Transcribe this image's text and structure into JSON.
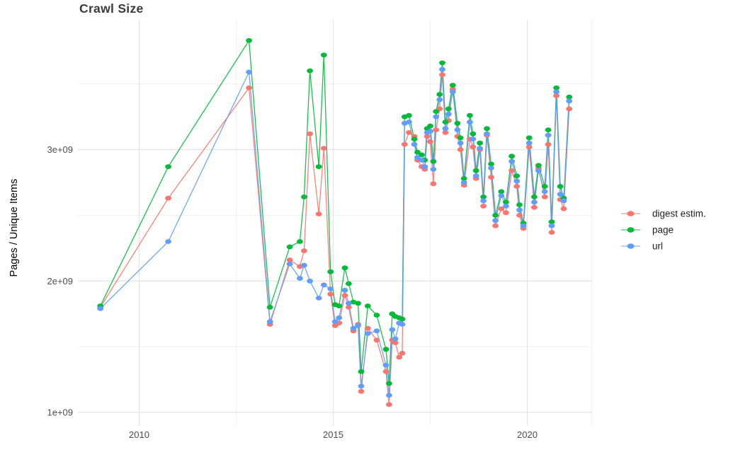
{
  "header": {
    "title": "Crawl Size"
  },
  "chart_data": {
    "type": "line",
    "title": "Crawl Size",
    "xlabel": "",
    "ylabel": "Pages / Unique Items",
    "value_unit": "billions (1e9)",
    "xlim": [
      2008.4,
      2021.7
    ],
    "ylim_billions": [
      0.92,
      3.98
    ],
    "legend_position": "right-middle",
    "x_ticks": [
      {
        "label": "2010",
        "year": 2010
      },
      {
        "label": "2015",
        "year": 2015
      },
      {
        "label": "2020",
        "year": 2020
      }
    ],
    "y_ticks": [
      {
        "label": "1e+09",
        "value": 1
      },
      {
        "label": "2e+09",
        "value": 2
      },
      {
        "label": "3e+09",
        "value": 3
      }
    ],
    "x_minor_gridlines_years": [
      2012.5,
      2017.5,
      2021.66
    ],
    "y_minor_gridlines_billions": [
      1.5,
      2.5,
      3.5
    ],
    "series": [
      {
        "name": "digest estim.",
        "color": "#F8766D",
        "points": [
          [
            2009.0,
            1.8
          ],
          [
            2010.75,
            2.63
          ],
          [
            2012.83,
            3.47
          ],
          [
            2013.37,
            1.67
          ],
          [
            2013.88,
            2.16
          ],
          [
            2014.14,
            2.11
          ],
          [
            2014.25,
            2.23
          ],
          [
            2014.4,
            3.12
          ],
          [
            2014.63,
            2.51
          ],
          [
            2014.76,
            3.01
          ],
          [
            2014.93,
            1.9
          ],
          [
            2015.05,
            1.66
          ],
          [
            2015.15,
            1.68
          ],
          [
            2015.3,
            1.89
          ],
          [
            2015.4,
            1.8
          ],
          [
            2015.52,
            1.62
          ],
          [
            2015.64,
            1.67
          ],
          [
            2015.72,
            1.16
          ],
          [
            2015.89,
            1.64
          ],
          [
            2016.12,
            1.55
          ],
          [
            2016.36,
            1.31
          ],
          [
            2016.44,
            1.06
          ],
          [
            2016.52,
            1.55
          ],
          [
            2016.6,
            1.53
          ],
          [
            2016.7,
            1.42
          ],
          [
            2016.78,
            1.45
          ],
          [
            2016.84,
            3.04
          ],
          [
            2016.95,
            3.13
          ],
          [
            2017.09,
            3.1
          ],
          [
            2017.17,
            2.92
          ],
          [
            2017.28,
            2.87
          ],
          [
            2017.36,
            2.85
          ],
          [
            2017.42,
            3.1
          ],
          [
            2017.5,
            3.06
          ],
          [
            2017.58,
            2.74
          ],
          [
            2017.65,
            3.15
          ],
          [
            2017.74,
            3.31
          ],
          [
            2017.81,
            3.57
          ],
          [
            2017.89,
            3.13
          ],
          [
            2017.97,
            3.22
          ],
          [
            2018.08,
            3.46
          ],
          [
            2018.2,
            3.1
          ],
          [
            2018.28,
            3.0
          ],
          [
            2018.37,
            2.73
          ],
          [
            2018.52,
            3.08
          ],
          [
            2018.6,
            3.02
          ],
          [
            2018.68,
            2.78
          ],
          [
            2018.78,
            3.0
          ],
          [
            2018.87,
            2.57
          ],
          [
            2018.96,
            3.11
          ],
          [
            2019.07,
            2.79
          ],
          [
            2019.18,
            2.42
          ],
          [
            2019.33,
            2.55
          ],
          [
            2019.45,
            2.52
          ],
          [
            2019.6,
            2.84
          ],
          [
            2019.73,
            2.72
          ],
          [
            2019.8,
            2.5
          ],
          [
            2019.9,
            2.4
          ],
          [
            2020.05,
            3.02
          ],
          [
            2020.18,
            2.56
          ],
          [
            2020.29,
            2.86
          ],
          [
            2020.45,
            2.64
          ],
          [
            2020.54,
            3.04
          ],
          [
            2020.63,
            2.37
          ],
          [
            2020.75,
            3.41
          ],
          [
            2020.85,
            2.62
          ],
          [
            2020.94,
            2.55
          ],
          [
            2021.08,
            3.31
          ]
        ]
      },
      {
        "name": "page",
        "color": "#00BA38",
        "points": [
          [
            2009.0,
            1.81
          ],
          [
            2010.75,
            2.87
          ],
          [
            2012.83,
            3.83
          ],
          [
            2013.37,
            1.8
          ],
          [
            2013.88,
            2.26
          ],
          [
            2014.14,
            2.3
          ],
          [
            2014.25,
            2.64
          ],
          [
            2014.4,
            3.6
          ],
          [
            2014.63,
            2.87
          ],
          [
            2014.76,
            3.72
          ],
          [
            2014.93,
            2.07
          ],
          [
            2015.05,
            1.82
          ],
          [
            2015.15,
            1.81
          ],
          [
            2015.3,
            2.1
          ],
          [
            2015.4,
            1.98
          ],
          [
            2015.52,
            1.84
          ],
          [
            2015.64,
            1.83
          ],
          [
            2015.72,
            1.31
          ],
          [
            2015.89,
            1.81
          ],
          [
            2016.12,
            1.74
          ],
          [
            2016.36,
            1.48
          ],
          [
            2016.44,
            1.22
          ],
          [
            2016.52,
            1.75
          ],
          [
            2016.6,
            1.73
          ],
          [
            2016.7,
            1.72
          ],
          [
            2016.78,
            1.71
          ],
          [
            2016.84,
            3.25
          ],
          [
            2016.95,
            3.26
          ],
          [
            2017.09,
            3.08
          ],
          [
            2017.17,
            2.98
          ],
          [
            2017.28,
            2.96
          ],
          [
            2017.36,
            2.92
          ],
          [
            2017.42,
            3.16
          ],
          [
            2017.5,
            3.18
          ],
          [
            2017.58,
            2.91
          ],
          [
            2017.65,
            3.29
          ],
          [
            2017.74,
            3.42
          ],
          [
            2017.81,
            3.66
          ],
          [
            2017.89,
            3.21
          ],
          [
            2017.97,
            3.31
          ],
          [
            2018.08,
            3.49
          ],
          [
            2018.2,
            3.2
          ],
          [
            2018.28,
            3.09
          ],
          [
            2018.37,
            2.78
          ],
          [
            2018.52,
            3.26
          ],
          [
            2018.6,
            3.12
          ],
          [
            2018.68,
            2.84
          ],
          [
            2018.78,
            3.05
          ],
          [
            2018.87,
            2.64
          ],
          [
            2018.96,
            3.16
          ],
          [
            2019.07,
            2.89
          ],
          [
            2019.18,
            2.5
          ],
          [
            2019.33,
            2.68
          ],
          [
            2019.45,
            2.6
          ],
          [
            2019.6,
            2.95
          ],
          [
            2019.73,
            2.8
          ],
          [
            2019.8,
            2.58
          ],
          [
            2019.9,
            2.44
          ],
          [
            2020.05,
            3.09
          ],
          [
            2020.18,
            2.64
          ],
          [
            2020.29,
            2.88
          ],
          [
            2020.45,
            2.72
          ],
          [
            2020.54,
            3.15
          ],
          [
            2020.63,
            2.45
          ],
          [
            2020.75,
            3.47
          ],
          [
            2020.85,
            2.72
          ],
          [
            2020.94,
            2.63
          ],
          [
            2021.08,
            3.4
          ]
        ]
      },
      {
        "name": "url",
        "color": "#619CFF",
        "points": [
          [
            2009.0,
            1.79
          ],
          [
            2010.75,
            2.3
          ],
          [
            2012.83,
            3.59
          ],
          [
            2013.37,
            1.69
          ],
          [
            2013.88,
            2.13
          ],
          [
            2014.14,
            2.02
          ],
          [
            2014.25,
            2.12
          ],
          [
            2014.4,
            2.0
          ],
          [
            2014.63,
            1.87
          ],
          [
            2014.76,
            1.97
          ],
          [
            2014.93,
            1.94
          ],
          [
            2015.05,
            1.69
          ],
          [
            2015.15,
            1.72
          ],
          [
            2015.3,
            1.93
          ],
          [
            2015.4,
            1.83
          ],
          [
            2015.52,
            1.64
          ],
          [
            2015.64,
            1.66
          ],
          [
            2015.72,
            1.2
          ],
          [
            2015.89,
            1.6
          ],
          [
            2016.12,
            1.62
          ],
          [
            2016.36,
            1.36
          ],
          [
            2016.44,
            1.13
          ],
          [
            2016.52,
            1.63
          ],
          [
            2016.6,
            1.56
          ],
          [
            2016.7,
            1.68
          ],
          [
            2016.78,
            1.67
          ],
          [
            2016.84,
            3.2
          ],
          [
            2016.95,
            3.21
          ],
          [
            2017.09,
            3.04
          ],
          [
            2017.17,
            2.94
          ],
          [
            2017.28,
            2.92
          ],
          [
            2017.36,
            2.87
          ],
          [
            2017.42,
            3.13
          ],
          [
            2017.5,
            3.14
          ],
          [
            2017.58,
            2.85
          ],
          [
            2017.65,
            3.25
          ],
          [
            2017.74,
            3.38
          ],
          [
            2017.81,
            3.61
          ],
          [
            2017.89,
            3.16
          ],
          [
            2017.97,
            3.27
          ],
          [
            2018.08,
            3.44
          ],
          [
            2018.2,
            3.15
          ],
          [
            2018.28,
            3.05
          ],
          [
            2018.37,
            2.75
          ],
          [
            2018.52,
            3.21
          ],
          [
            2018.6,
            3.08
          ],
          [
            2018.68,
            2.8
          ],
          [
            2018.78,
            3.01
          ],
          [
            2018.87,
            2.61
          ],
          [
            2018.96,
            3.12
          ],
          [
            2019.07,
            2.86
          ],
          [
            2019.18,
            2.46
          ],
          [
            2019.33,
            2.65
          ],
          [
            2019.45,
            2.57
          ],
          [
            2019.6,
            2.91
          ],
          [
            2019.73,
            2.76
          ],
          [
            2019.8,
            2.54
          ],
          [
            2019.9,
            2.42
          ],
          [
            2020.05,
            3.05
          ],
          [
            2020.18,
            2.6
          ],
          [
            2020.29,
            2.84
          ],
          [
            2020.45,
            2.68
          ],
          [
            2020.54,
            3.11
          ],
          [
            2020.63,
            2.42
          ],
          [
            2020.75,
            3.44
          ],
          [
            2020.85,
            2.66
          ],
          [
            2020.94,
            2.61
          ],
          [
            2021.08,
            3.37
          ]
        ]
      }
    ]
  }
}
